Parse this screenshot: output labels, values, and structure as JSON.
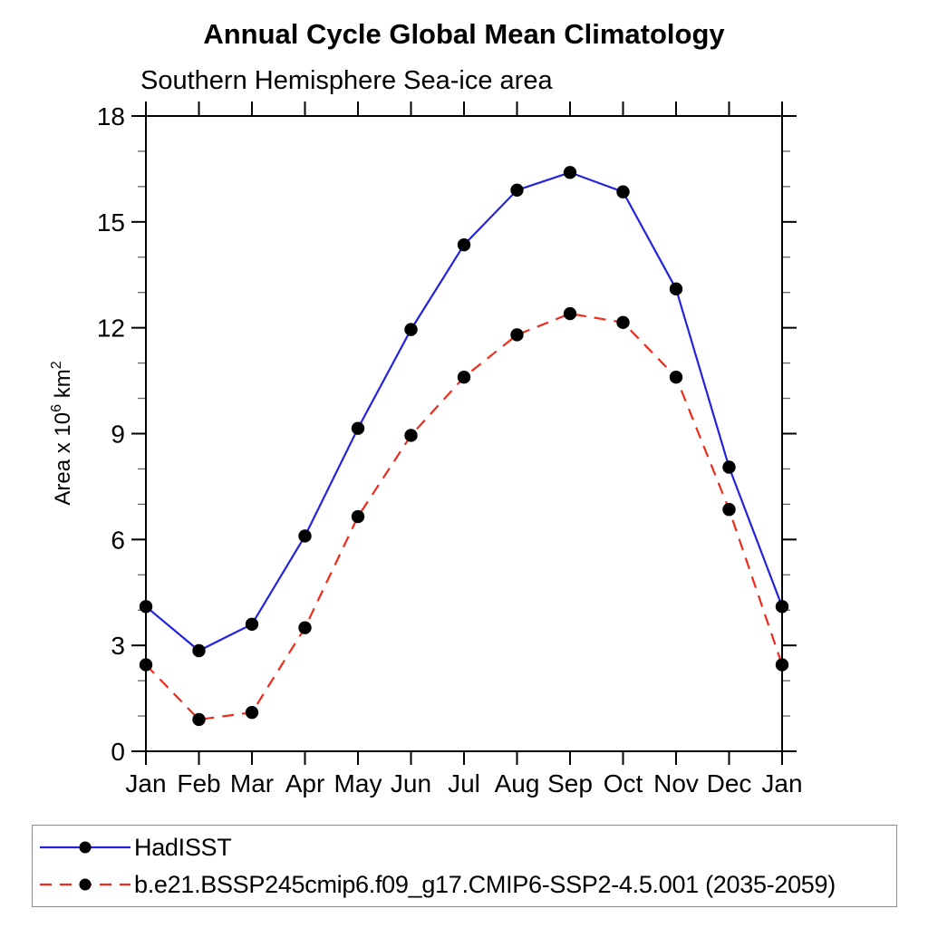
{
  "title": "Annual Cycle Global Mean Climatology",
  "subtitle": "Southern Hemisphere Sea-ice area",
  "chart_data": {
    "type": "line",
    "title": "Annual Cycle Global Mean Climatology",
    "subtitle": "Southern Hemisphere Sea-ice area",
    "categories": [
      "Jan",
      "Feb",
      "Mar",
      "Apr",
      "May",
      "Jun",
      "Jul",
      "Aug",
      "Sep",
      "Oct",
      "Nov",
      "Dec",
      "Jan"
    ],
    "xlabel": "",
    "ylabel": "Area x 10^6 km^2",
    "ylabel_parts": [
      [
        "text",
        "Area x 10"
      ],
      [
        "sup",
        "6"
      ],
      [
        "text",
        " km"
      ],
      [
        "sup",
        "2"
      ]
    ],
    "ylim": [
      0,
      18
    ],
    "ytick_major": [
      0,
      3,
      6,
      9,
      12,
      15,
      18
    ],
    "ytick_minor_step": 1,
    "grid": false,
    "legend_position": "bottom",
    "series": [
      {
        "name": "HadISST",
        "line_style": "solid",
        "line_color": "#2323dd",
        "marker": "circle",
        "marker_color": "#000000",
        "values": [
          4.1,
          2.85,
          3.6,
          6.1,
          9.15,
          11.95,
          14.35,
          15.9,
          16.4,
          15.85,
          13.1,
          8.05,
          4.1
        ]
      },
      {
        "name": "b.e21.BSSP245cmip6.f09_g17.CMIP6-SSP2-4.5.001 (2035-2059)",
        "line_style": "dashed",
        "line_color": "#ef2b1c",
        "marker": "circle",
        "marker_color": "#000000",
        "values": [
          2.45,
          0.9,
          1.1,
          3.5,
          6.65,
          8.95,
          10.6,
          11.8,
          12.4,
          12.15,
          10.6,
          6.85,
          2.45
        ]
      }
    ]
  },
  "colors": {
    "background": "#ffffff",
    "axis": "#000000",
    "minor_tick": "#666666",
    "text": "#000000",
    "legend_border": "#8c8c8c"
  }
}
